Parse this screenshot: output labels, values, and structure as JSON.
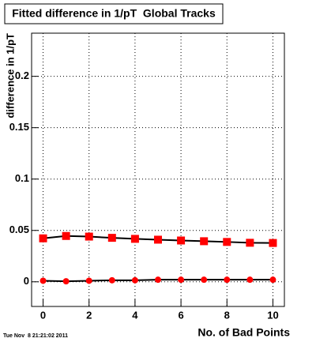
{
  "chart_data": {
    "type": "line",
    "title": "Fitted difference in 1/pT  Global Tracks",
    "x_label": "No. of Bad Points",
    "y_label": "difference in 1/pT",
    "timestamp": "Tue Nov  8 21:21:02 2011",
    "x": [
      0,
      1,
      2,
      3,
      4,
      5,
      6,
      7,
      8,
      9,
      10
    ],
    "series": [
      {
        "color": "#ff0000",
        "line_color": "#000000",
        "marker": "square",
        "values": [
          0.0423,
          0.0446,
          0.044,
          0.0428,
          0.0418,
          0.041,
          0.0402,
          0.0395,
          0.0388,
          0.038,
          0.0378
        ]
      },
      {
        "color": "#ff0000",
        "line_color": "#000000",
        "marker": "circle",
        "values": [
          0.001,
          0.0005,
          0.001,
          0.0015,
          0.0015,
          0.002,
          0.002,
          0.002,
          0.002,
          0.002,
          0.002
        ]
      }
    ],
    "xlim": [
      -0.5,
      10.5
    ],
    "xticks": [
      0,
      2,
      4,
      6,
      8,
      10
    ],
    "ylim": [
      -0.024,
      0.242
    ],
    "yticks": [
      0,
      0.05,
      0.1,
      0.15,
      0.2
    ],
    "grid": true
  }
}
